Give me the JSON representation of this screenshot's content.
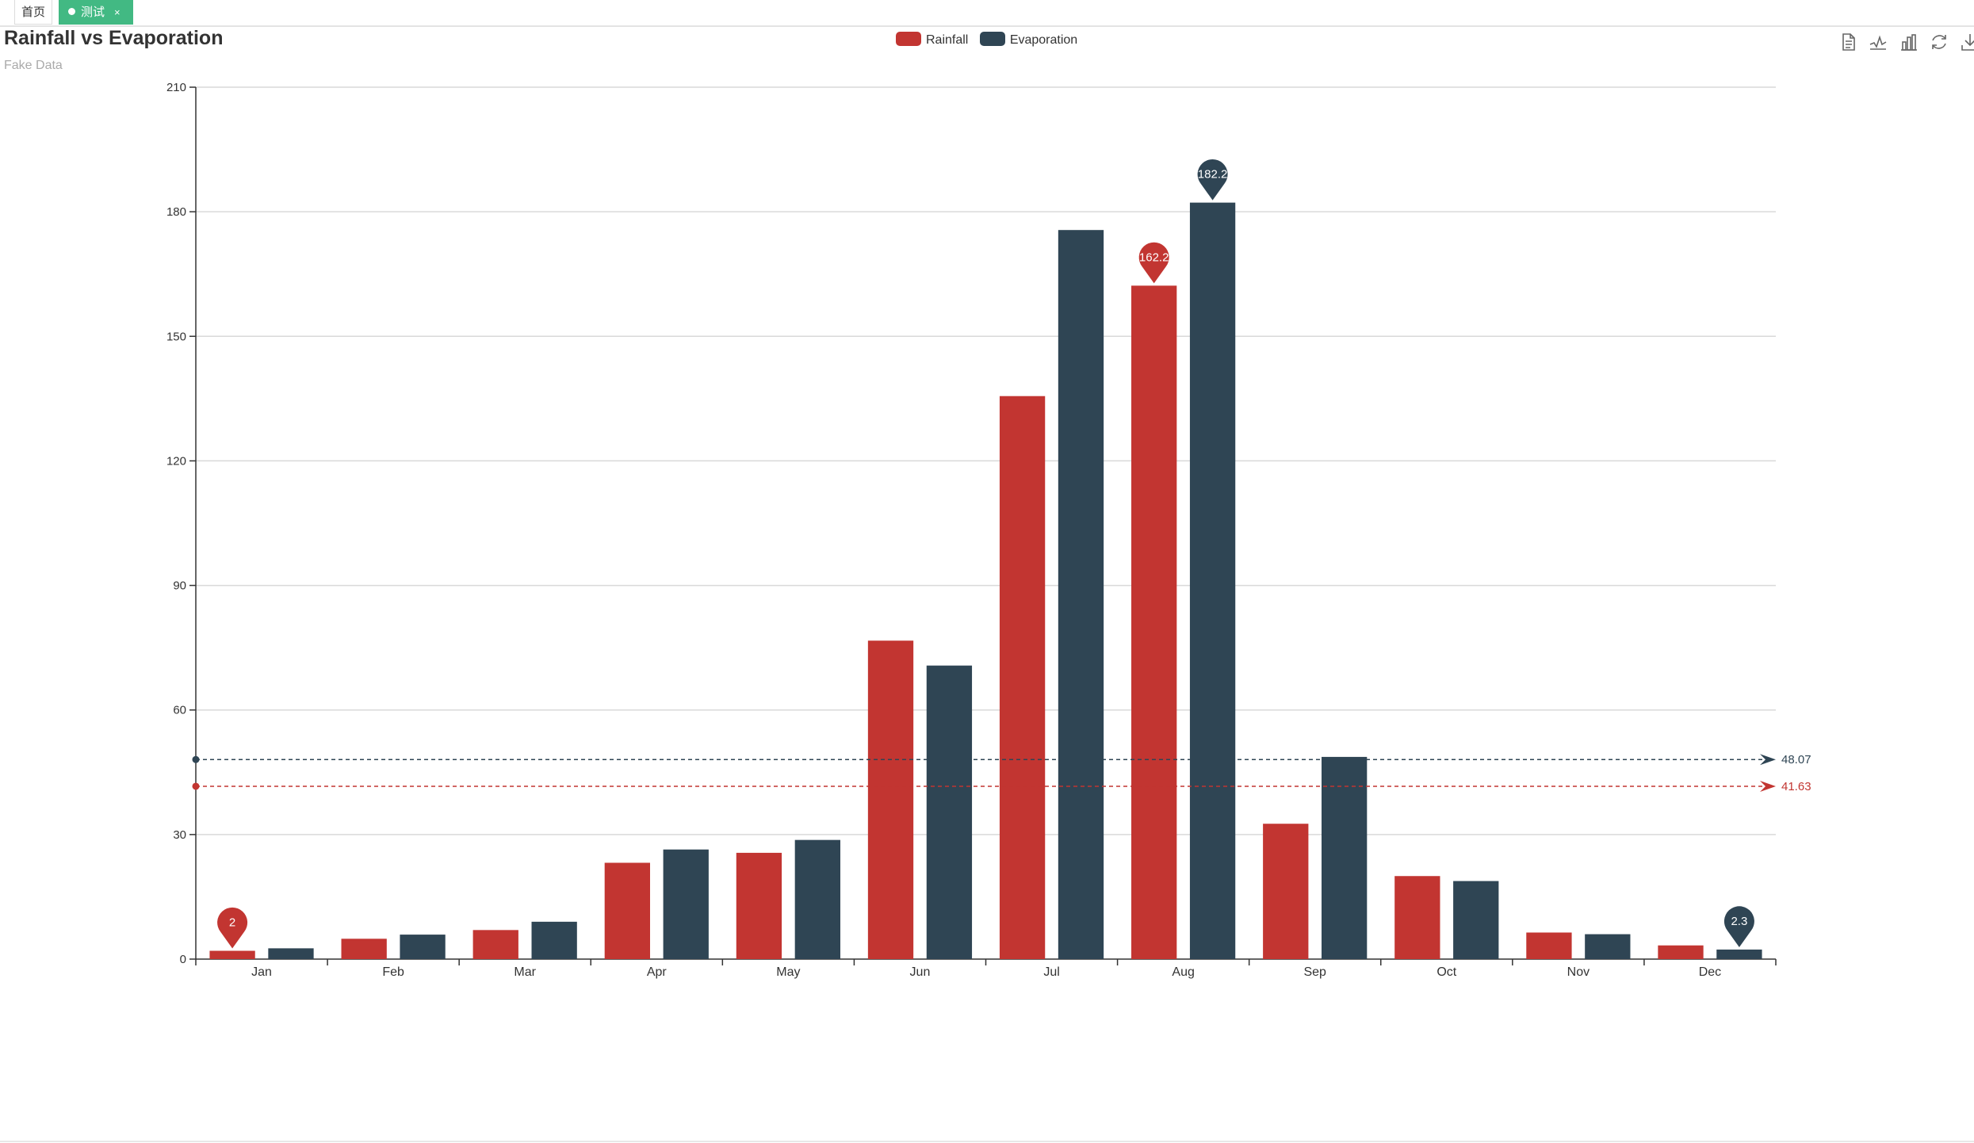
{
  "tabs": [
    {
      "label": "首页",
      "active": false
    },
    {
      "label": "测试",
      "active": true,
      "close": "×"
    }
  ],
  "colors": {
    "rainfall": "#c23531",
    "evaporation": "#2f4554",
    "tab_active": "#42b983",
    "grid": "#d9d9d9",
    "axis": "#333333"
  },
  "toolbox": [
    "data-view-icon",
    "line-chart-icon",
    "bar-chart-icon",
    "restore-icon",
    "save-image-icon"
  ],
  "chart_data": {
    "type": "bar",
    "title": "Rainfall vs Evaporation",
    "subtitle": "Fake Data",
    "legend_position": "top-center",
    "categories": [
      "Jan",
      "Feb",
      "Mar",
      "Apr",
      "May",
      "Jun",
      "Jul",
      "Aug",
      "Sep",
      "Oct",
      "Nov",
      "Dec"
    ],
    "series": [
      {
        "name": "Rainfall",
        "color": "#c23531",
        "values": [
          2.0,
          4.9,
          7.0,
          23.2,
          25.6,
          76.7,
          135.6,
          162.2,
          32.6,
          20.0,
          6.4,
          3.3
        ],
        "mark_points": [
          {
            "label": "162.2",
            "category": "Aug"
          },
          {
            "label": "2",
            "category": "Jan"
          }
        ],
        "mark_line": {
          "label": "41.63",
          "value": 41.63
        }
      },
      {
        "name": "Evaporation",
        "color": "#2f4554",
        "values": [
          2.6,
          5.9,
          9.0,
          26.4,
          28.7,
          70.7,
          175.6,
          182.2,
          48.7,
          18.8,
          6.0,
          2.3
        ],
        "mark_points": [
          {
            "label": "182.2",
            "category": "Aug"
          },
          {
            "label": "2.3",
            "category": "Dec"
          }
        ],
        "mark_line": {
          "label": "48.07",
          "value": 48.07
        }
      }
    ],
    "ylim": [
      0,
      210
    ],
    "yticks": [
      "0",
      "30",
      "60",
      "90",
      "120",
      "150",
      "180",
      "210"
    ],
    "grid": true
  }
}
